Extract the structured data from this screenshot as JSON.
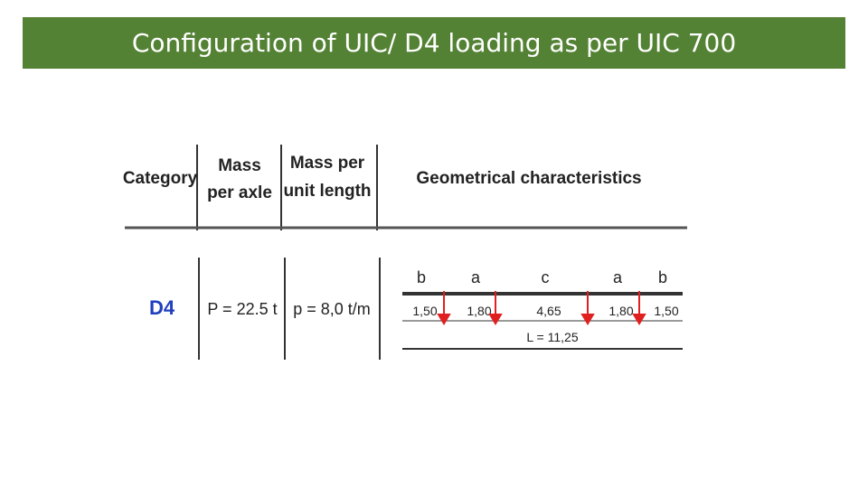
{
  "header": {
    "title": "Configuration of UIC/ D4 loading as per UIC 700"
  },
  "table": {
    "headers": [
      "Category",
      [
        "Mass",
        "per axle"
      ],
      [
        "Mass per",
        "unit length"
      ],
      "Geometrical characteristics"
    ],
    "row": {
      "category": "D4",
      "mass_per_axle": "P = 22.5 t",
      "mass_per_length": "p = 8,0 t/m"
    },
    "geometry": {
      "letters": [
        "b",
        "a",
        "c",
        "a",
        "b"
      ],
      "distances": [
        "1,50",
        "1,80",
        "4,65",
        "1,80",
        "1,50"
      ],
      "total": "L = 11,25"
    }
  }
}
